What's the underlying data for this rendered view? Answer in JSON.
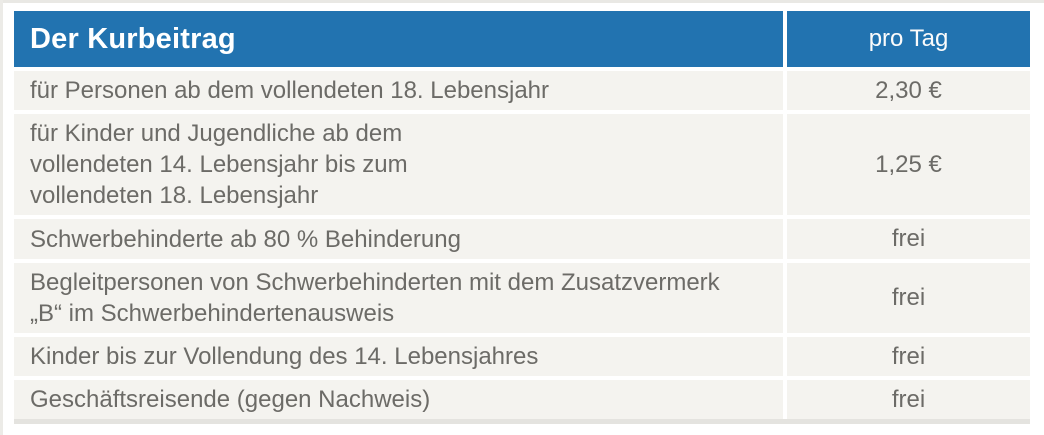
{
  "table": {
    "title": "Der Kurbeitrag",
    "value_column_header": "pro Tag",
    "rows": [
      {
        "label": "für Personen ab dem vollendeten 18. Lebensjahr",
        "value": "2,30 €"
      },
      {
        "label": "für Kinder und Jugendliche ab dem\nvollendeten 14. Lebensjahr bis zum\nvollendeten 18. Lebensjahr",
        "value": "1,25 €"
      },
      {
        "label": "Schwerbehinderte ab 80 % Behinderung",
        "value": "frei"
      },
      {
        "label": "Begleitpersonen von Schwerbehinderten mit dem Zusatzvermerk\n„B“ im Schwerbehindertenausweis",
        "value": "frei"
      },
      {
        "label": "Kinder bis zur Vollendung des 14. Lebensjahres",
        "value": "frei"
      },
      {
        "label": "Geschäftsreisende (gegen Nachweis)",
        "value": "frei"
      }
    ],
    "colors": {
      "header_bg": "#2273b0",
      "header_text": "#ffffff",
      "row_bg": "#f4f3ef",
      "body_text": "#6c6b67",
      "separator": "#ffffff"
    }
  }
}
